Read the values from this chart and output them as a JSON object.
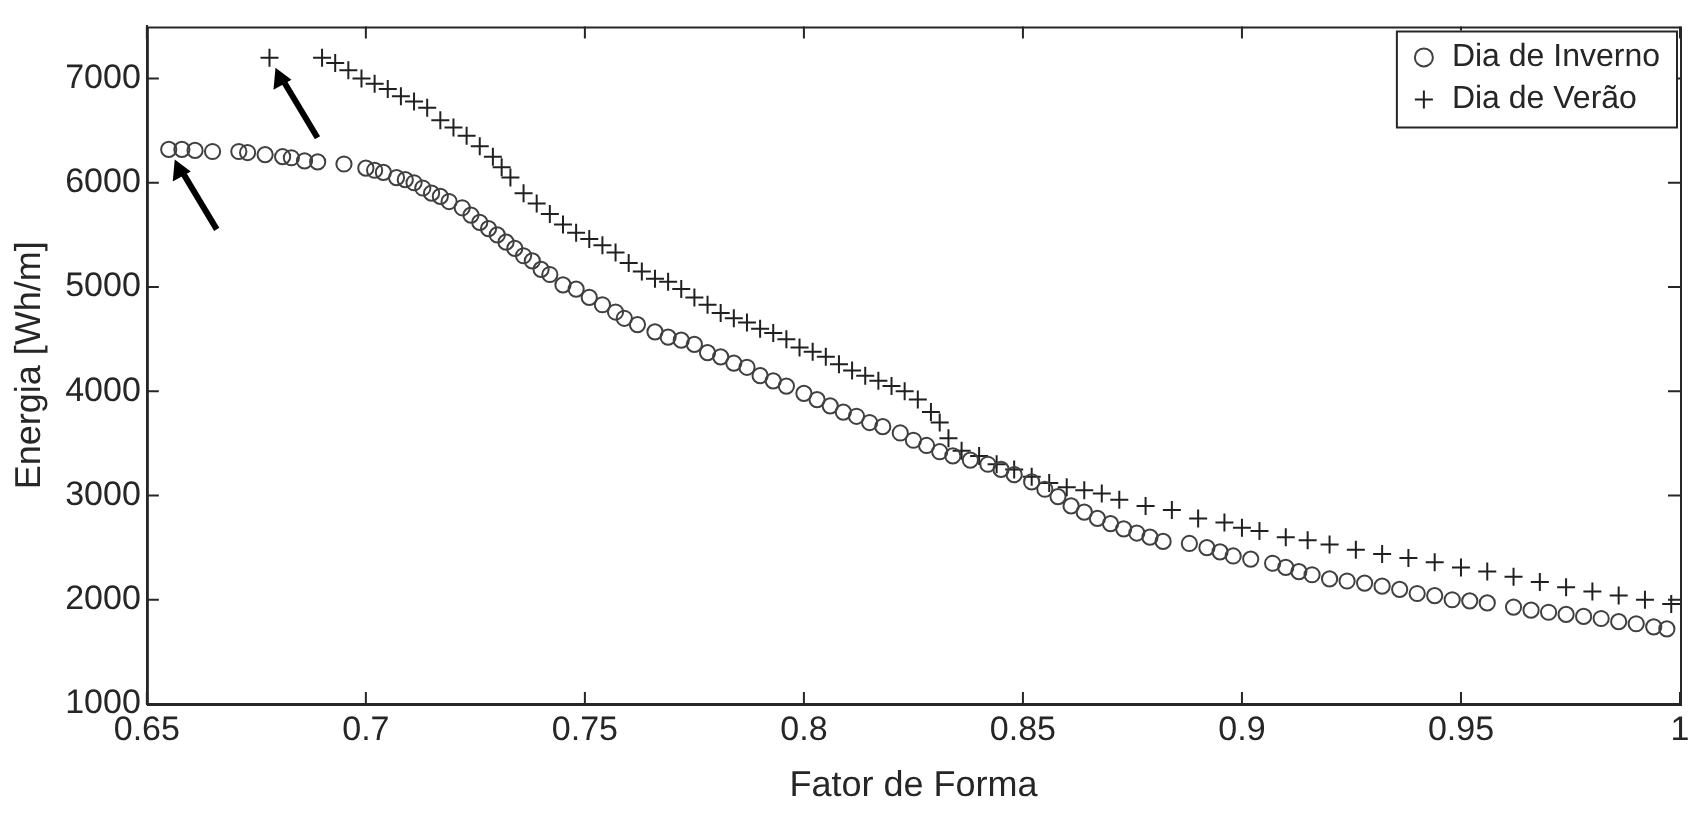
{
  "chart_data": {
    "type": "scatter",
    "xlabel": "Fator de Forma",
    "ylabel": "Energia [Wh/m]",
    "xlim": [
      0.65,
      1
    ],
    "xticks": [
      0.65,
      0.7,
      0.75,
      0.8,
      0.85,
      0.9,
      0.95,
      1
    ],
    "ylim": [
      1000,
      7500
    ],
    "yticks": [
      1000,
      2000,
      3000,
      4000,
      5000,
      6000,
      7000
    ],
    "grid": false,
    "legend": "top right",
    "series": [
      {
        "name": "Dia de Inverno",
        "marker": "circle",
        "color": "#404040",
        "x": [
          0.655,
          0.658,
          0.661,
          0.665,
          0.671,
          0.673,
          0.677,
          0.681,
          0.683,
          0.686,
          0.689,
          0.695,
          0.7,
          0.702,
          0.704,
          0.707,
          0.709,
          0.711,
          0.713,
          0.715,
          0.717,
          0.719,
          0.722,
          0.724,
          0.726,
          0.728,
          0.73,
          0.732,
          0.734,
          0.736,
          0.738,
          0.74,
          0.742,
          0.745,
          0.748,
          0.751,
          0.754,
          0.757,
          0.759,
          0.762,
          0.766,
          0.769,
          0.772,
          0.775,
          0.778,
          0.781,
          0.784,
          0.787,
          0.79,
          0.793,
          0.796,
          0.8,
          0.803,
          0.806,
          0.809,
          0.812,
          0.815,
          0.818,
          0.822,
          0.825,
          0.828,
          0.831,
          0.834,
          0.838,
          0.842,
          0.845,
          0.848,
          0.852,
          0.855,
          0.858,
          0.861,
          0.864,
          0.867,
          0.87,
          0.873,
          0.876,
          0.879,
          0.882,
          0.888,
          0.892,
          0.895,
          0.898,
          0.902,
          0.907,
          0.91,
          0.913,
          0.916,
          0.92,
          0.924,
          0.928,
          0.932,
          0.936,
          0.94,
          0.944,
          0.948,
          0.952,
          0.956,
          0.962,
          0.966,
          0.97,
          0.974,
          0.978,
          0.982,
          0.986,
          0.99,
          0.994,
          0.997
        ],
        "values": [
          6320,
          6320,
          6310,
          6300,
          6300,
          6290,
          6270,
          6250,
          6240,
          6210,
          6200,
          6180,
          6140,
          6120,
          6100,
          6050,
          6030,
          6000,
          5950,
          5900,
          5870,
          5820,
          5760,
          5690,
          5620,
          5560,
          5500,
          5430,
          5370,
          5300,
          5250,
          5170,
          5120,
          5020,
          4980,
          4900,
          4830,
          4760,
          4700,
          4640,
          4570,
          4520,
          4490,
          4450,
          4370,
          4330,
          4270,
          4230,
          4150,
          4100,
          4050,
          3980,
          3920,
          3860,
          3800,
          3760,
          3700,
          3660,
          3600,
          3530,
          3480,
          3420,
          3380,
          3340,
          3300,
          3250,
          3200,
          3130,
          3060,
          2990,
          2900,
          2840,
          2780,
          2730,
          2680,
          2640,
          2600,
          2560,
          2540,
          2500,
          2460,
          2420,
          2390,
          2350,
          2310,
          2270,
          2240,
          2200,
          2180,
          2160,
          2130,
          2100,
          2060,
          2040,
          2000,
          1990,
          1970,
          1930,
          1900,
          1880,
          1860,
          1840,
          1820,
          1790,
          1770,
          1740,
          1720
        ]
      },
      {
        "name": "Dia de Verão",
        "marker": "cross",
        "color": "#202020",
        "x": [
          0.678,
          0.69,
          0.693,
          0.696,
          0.699,
          0.702,
          0.705,
          0.708,
          0.711,
          0.714,
          0.717,
          0.72,
          0.723,
          0.726,
          0.729,
          0.731,
          0.733,
          0.736,
          0.739,
          0.742,
          0.745,
          0.748,
          0.751,
          0.754,
          0.757,
          0.76,
          0.763,
          0.766,
          0.769,
          0.772,
          0.775,
          0.778,
          0.781,
          0.784,
          0.787,
          0.79,
          0.793,
          0.796,
          0.799,
          0.802,
          0.805,
          0.808,
          0.811,
          0.814,
          0.817,
          0.82,
          0.823,
          0.826,
          0.829,
          0.831,
          0.833,
          0.836,
          0.84,
          0.844,
          0.848,
          0.852,
          0.856,
          0.86,
          0.864,
          0.868,
          0.872,
          0.878,
          0.884,
          0.89,
          0.896,
          0.9,
          0.904,
          0.91,
          0.915,
          0.92,
          0.926,
          0.932,
          0.938,
          0.944,
          0.95,
          0.956,
          0.962,
          0.968,
          0.974,
          0.98,
          0.986,
          0.992,
          0.998
        ],
        "values": [
          7200,
          7200,
          7150,
          7080,
          7000,
          6950,
          6900,
          6830,
          6780,
          6720,
          6600,
          6530,
          6450,
          6350,
          6250,
          6150,
          6050,
          5900,
          5800,
          5700,
          5600,
          5520,
          5460,
          5400,
          5330,
          5230,
          5150,
          5080,
          5050,
          4980,
          4900,
          4830,
          4750,
          4700,
          4660,
          4600,
          4560,
          4500,
          4420,
          4380,
          4330,
          4260,
          4200,
          4150,
          4100,
          4050,
          4000,
          3920,
          3800,
          3700,
          3550,
          3430,
          3380,
          3300,
          3250,
          3180,
          3120,
          3080,
          3050,
          3020,
          2960,
          2900,
          2860,
          2780,
          2740,
          2690,
          2660,
          2600,
          2570,
          2530,
          2480,
          2440,
          2400,
          2360,
          2310,
          2270,
          2220,
          2170,
          2120,
          2080,
          2040,
          2000,
          1960
        ]
      }
    ]
  }
}
